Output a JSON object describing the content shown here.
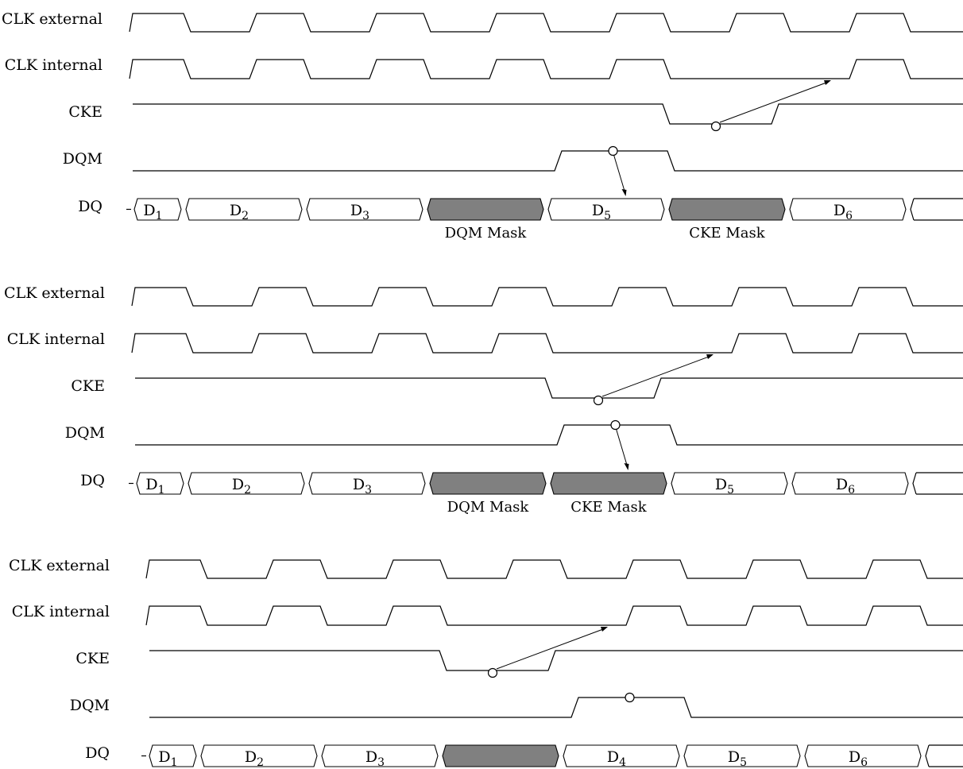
{
  "signal_names": {
    "clk_external": "CLK external",
    "clk_internal": "CLK internal",
    "cke": "CKE",
    "dqm": "DQM",
    "dq": "DQ"
  },
  "mask_labels": {
    "dqm": "DQM Mask",
    "cke": "CKE Mask"
  },
  "panels": [
    {
      "clock_pulses_external": 7,
      "clock_pulses_internal_skipped": [
        5
      ],
      "cke_low_cycles": [
        4
      ],
      "dqm_high_cycles": [
        3
      ],
      "dq_cells": [
        {
          "base": "D",
          "sub": "1"
        },
        {
          "base": "D",
          "sub": "2"
        },
        {
          "base": "D",
          "sub": "3"
        },
        {
          "mask": "dqm"
        },
        {
          "base": "D",
          "sub": "5"
        },
        {
          "mask": "cke"
        },
        {
          "base": "D",
          "sub": "6"
        },
        {
          "open": true
        }
      ]
    },
    {
      "clock_pulses_external": 7,
      "clock_pulses_internal_skipped": [
        4
      ],
      "cke_low_cycles": [
        3
      ],
      "dqm_high_cycles": [
        3
      ],
      "dq_cells": [
        {
          "base": "D",
          "sub": "1"
        },
        {
          "base": "D",
          "sub": "2"
        },
        {
          "base": "D",
          "sub": "3"
        },
        {
          "mask": "dqm"
        },
        {
          "mask": "cke"
        },
        {
          "base": "D",
          "sub": "5"
        },
        {
          "base": "D",
          "sub": "6"
        },
        {
          "open": true
        }
      ]
    },
    {
      "clock_pulses_external": 7,
      "clock_pulses_internal_skipped": [
        3
      ],
      "cke_low_cycles": [
        2
      ],
      "dqm_high_cycles": [
        3
      ],
      "dq_cells": [
        {
          "base": "D",
          "sub": "1"
        },
        {
          "base": "D",
          "sub": "2"
        },
        {
          "base": "D",
          "sub": "3"
        },
        {
          "mask": "blank"
        },
        {
          "base": "D",
          "sub": "4"
        },
        {
          "base": "D",
          "sub": "5"
        },
        {
          "base": "D",
          "sub": "6"
        },
        {
          "open": true
        }
      ]
    }
  ]
}
